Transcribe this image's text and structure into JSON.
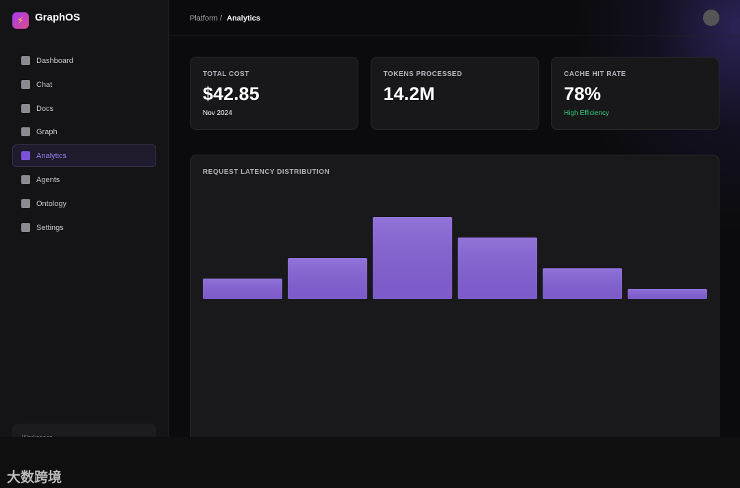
{
  "app": {
    "name": "GraphOS"
  },
  "nav": {
    "items": [
      "Dashboard",
      "Chat",
      "Docs",
      "Graph",
      "Analytics",
      "Agents",
      "Ontology",
      "Settings"
    ],
    "active": 4
  },
  "breadcrumb": {
    "parent": "Platform /",
    "current": "Analytics"
  },
  "metrics": [
    {
      "label": "TOTAL COST",
      "value": "$42.85",
      "note": "Nov 2024"
    },
    {
      "label": "TOKENS PROCESSED",
      "value": "14.2M"
    },
    {
      "label": "CACHE HIT RATE",
      "value": "78%",
      "note": "High Efficiency"
    }
  ],
  "chart_data": {
    "type": "bar",
    "title": "REQUEST LATENCY DISTRIBUTION",
    "values": [
      2,
      4,
      8,
      6,
      3,
      1
    ],
    "color": "#8360d4"
  },
  "sidebar_footer": "Workspace",
  "watermark": "大数跨境"
}
